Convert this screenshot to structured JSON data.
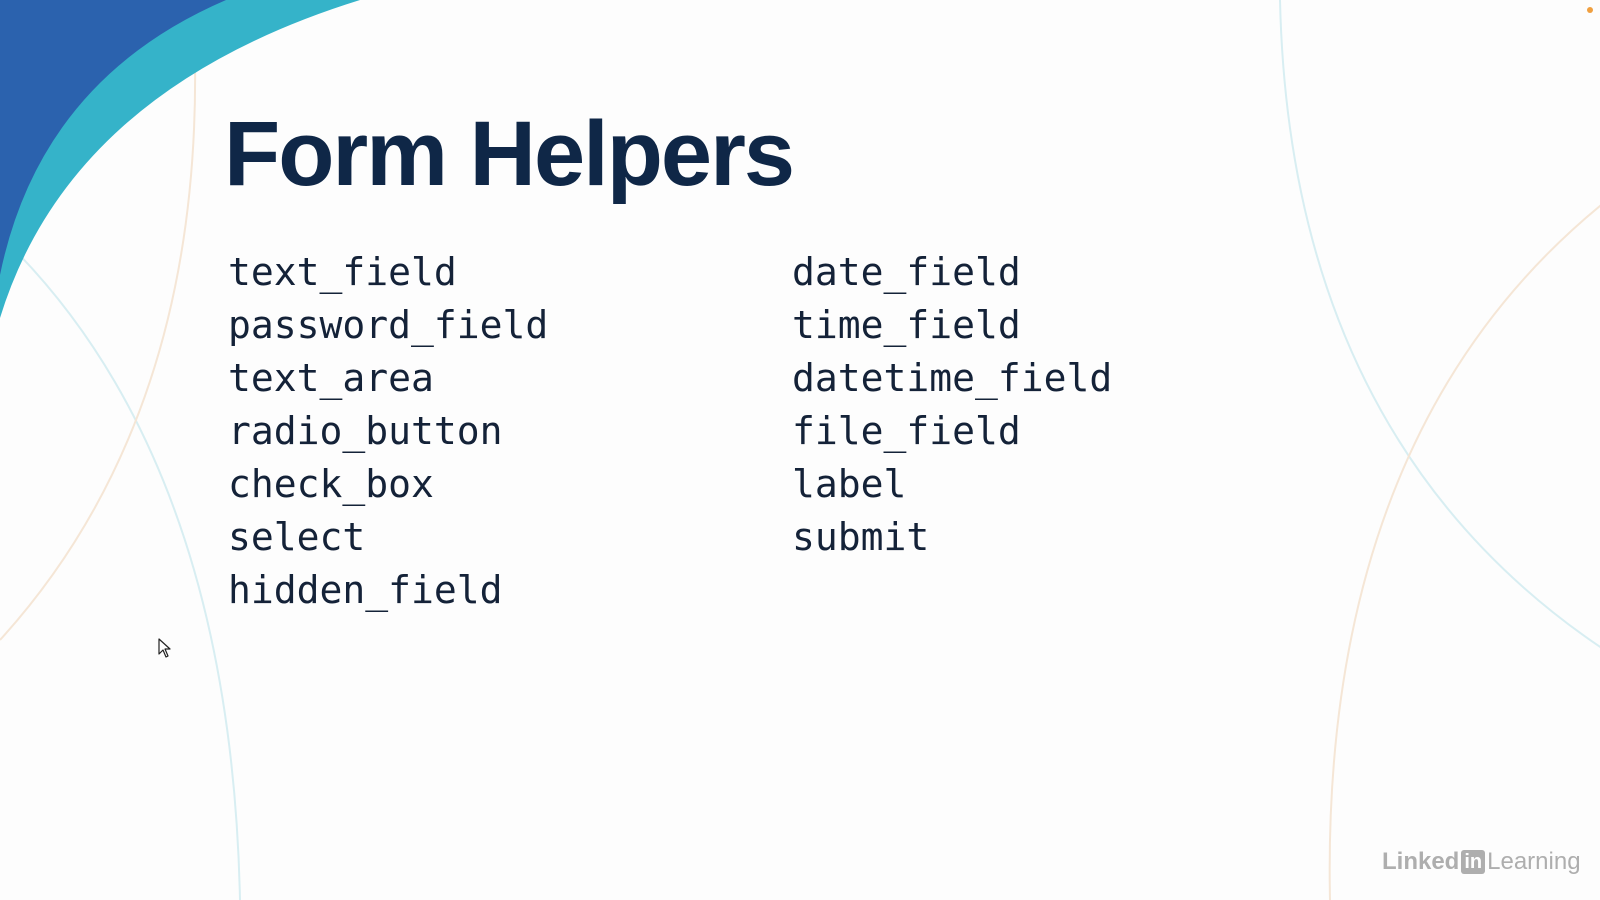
{
  "slide": {
    "title": "Form Helpers",
    "left_items": [
      "text_field",
      "password_field",
      "text_area",
      "radio_button",
      "check_box",
      "select",
      "hidden_field"
    ],
    "right_items": [
      "date_field",
      "time_field",
      "datetime_field",
      "file_field",
      "label",
      "submit"
    ]
  },
  "watermark": {
    "prefix": "Linked",
    "badge": "in",
    "suffix": "Learning"
  },
  "colors": {
    "title": "#0f2747",
    "text": "#142238",
    "accent_blue": "#2b62ae",
    "accent_teal": "#35b3c9"
  },
  "icons": {
    "pointer": "mouse-pointer-icon"
  }
}
